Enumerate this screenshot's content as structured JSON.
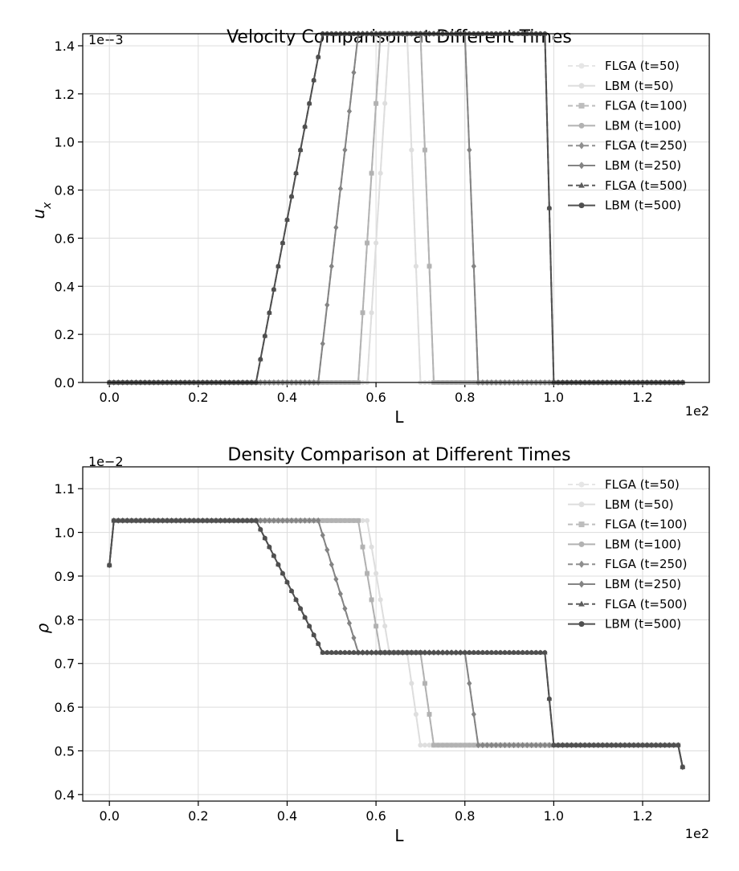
{
  "chart_data": [
    {
      "type": "line",
      "title": "Velocity Comparison at Different Times",
      "xlabel": "L",
      "ylabel": "u_x",
      "x_scale_label": "1e2",
      "y_scale_label": "1e−3",
      "xlim": [
        -0.06,
        1.35
      ],
      "ylim": [
        0.0,
        1.45
      ],
      "xticks": [
        "0.0",
        "0.2",
        "0.4",
        "0.6",
        "0.8",
        "1.0",
        "1.2"
      ],
      "yticks": [
        "0.0",
        "0.2",
        "0.4",
        "0.6",
        "0.8",
        "1.0",
        "1.2",
        "1.4"
      ],
      "grid": true,
      "legend_position": "top-right",
      "profile": {
        "low": 0.0,
        "high": 1.45,
        "shape": "pulse",
        "x_start": 0.0,
        "x_end": 1.29,
        "step": 0.01
      },
      "series": [
        {
          "name": "FLGA (t=50)",
          "style": "dashed",
          "marker": "circle",
          "color": "#e6e6e6",
          "rise": [
            0.58,
            0.63
          ],
          "fall": [
            0.67,
            0.7
          ]
        },
        {
          "name": "LBM (t=50)",
          "style": "solid",
          "marker": "circle",
          "color": "#dedede",
          "rise": [
            0.58,
            0.63
          ],
          "fall": [
            0.67,
            0.7
          ]
        },
        {
          "name": "FLGA (t=100)",
          "style": "dashed",
          "marker": "square",
          "color": "#bdbdbd",
          "rise": [
            0.56,
            0.61
          ],
          "fall": [
            0.7,
            0.73
          ]
        },
        {
          "name": "LBM (t=100)",
          "style": "solid",
          "marker": "circle",
          "color": "#b2b2b2",
          "rise": [
            0.56,
            0.61
          ],
          "fall": [
            0.7,
            0.73
          ]
        },
        {
          "name": "FLGA (t=250)",
          "style": "dashed",
          "marker": "diamond",
          "color": "#8f8f8f",
          "rise": [
            0.47,
            0.56
          ],
          "fall": [
            0.8,
            0.83
          ]
        },
        {
          "name": "LBM (t=250)",
          "style": "solid",
          "marker": "diamond",
          "color": "#848484",
          "rise": [
            0.47,
            0.56
          ],
          "fall": [
            0.8,
            0.83
          ]
        },
        {
          "name": "FLGA (t=500)",
          "style": "dashed",
          "marker": "triangle",
          "color": "#5c5c5c",
          "rise": [
            0.33,
            0.48
          ],
          "fall": [
            0.98,
            1.0
          ]
        },
        {
          "name": "LBM (t=500)",
          "style": "solid",
          "marker": "circle",
          "color": "#4f4f4f",
          "rise": [
            0.33,
            0.48
          ],
          "fall": [
            0.98,
            1.0
          ]
        }
      ]
    },
    {
      "type": "line",
      "title": "Density Comparison at Different Times",
      "xlabel": "L",
      "ylabel": "ρ",
      "x_scale_label": "1e2",
      "y_scale_label": "1e−2",
      "xlim": [
        -0.06,
        1.35
      ],
      "ylim": [
        0.385,
        1.15
      ],
      "xticks": [
        "0.0",
        "0.2",
        "0.4",
        "0.6",
        "0.8",
        "1.0",
        "1.2"
      ],
      "yticks": [
        "0.4",
        "0.5",
        "0.6",
        "0.7",
        "0.8",
        "0.9",
        "1.0",
        "1.1"
      ],
      "grid": true,
      "legend_position": "top-right",
      "profile": {
        "left_edge": 0.925,
        "left_plateau": 1.027,
        "mid_plateau": 0.725,
        "right_plateau": 0.513,
        "right_edge": 0.463,
        "shape": "two-step",
        "x_start": 0.0,
        "x_end": 1.29,
        "step": 0.01
      },
      "series": [
        {
          "name": "FLGA (t=50)",
          "style": "dashed",
          "marker": "circle",
          "color": "#e6e6e6",
          "rise": [
            0.58,
            0.63
          ],
          "fall": [
            0.67,
            0.7
          ]
        },
        {
          "name": "LBM (t=50)",
          "style": "solid",
          "marker": "circle",
          "color": "#dedede",
          "rise": [
            0.58,
            0.63
          ],
          "fall": [
            0.67,
            0.7
          ]
        },
        {
          "name": "FLGA (t=100)",
          "style": "dashed",
          "marker": "square",
          "color": "#bdbdbd",
          "rise": [
            0.56,
            0.61
          ],
          "fall": [
            0.7,
            0.73
          ]
        },
        {
          "name": "LBM (t=100)",
          "style": "solid",
          "marker": "circle",
          "color": "#b2b2b2",
          "rise": [
            0.56,
            0.61
          ],
          "fall": [
            0.7,
            0.73
          ]
        },
        {
          "name": "FLGA (t=250)",
          "style": "dashed",
          "marker": "diamond",
          "color": "#8f8f8f",
          "rise": [
            0.47,
            0.56
          ],
          "fall": [
            0.8,
            0.83
          ]
        },
        {
          "name": "LBM (t=250)",
          "style": "solid",
          "marker": "diamond",
          "color": "#848484",
          "rise": [
            0.47,
            0.56
          ],
          "fall": [
            0.8,
            0.83
          ]
        },
        {
          "name": "FLGA (t=500)",
          "style": "dashed",
          "marker": "triangle",
          "color": "#5c5c5c",
          "rise": [
            0.33,
            0.48
          ],
          "fall": [
            0.98,
            1.0
          ]
        },
        {
          "name": "LBM (t=500)",
          "style": "solid",
          "marker": "circle",
          "color": "#4f4f4f",
          "rise": [
            0.33,
            0.48
          ],
          "fall": [
            0.98,
            1.0
          ]
        }
      ]
    }
  ]
}
